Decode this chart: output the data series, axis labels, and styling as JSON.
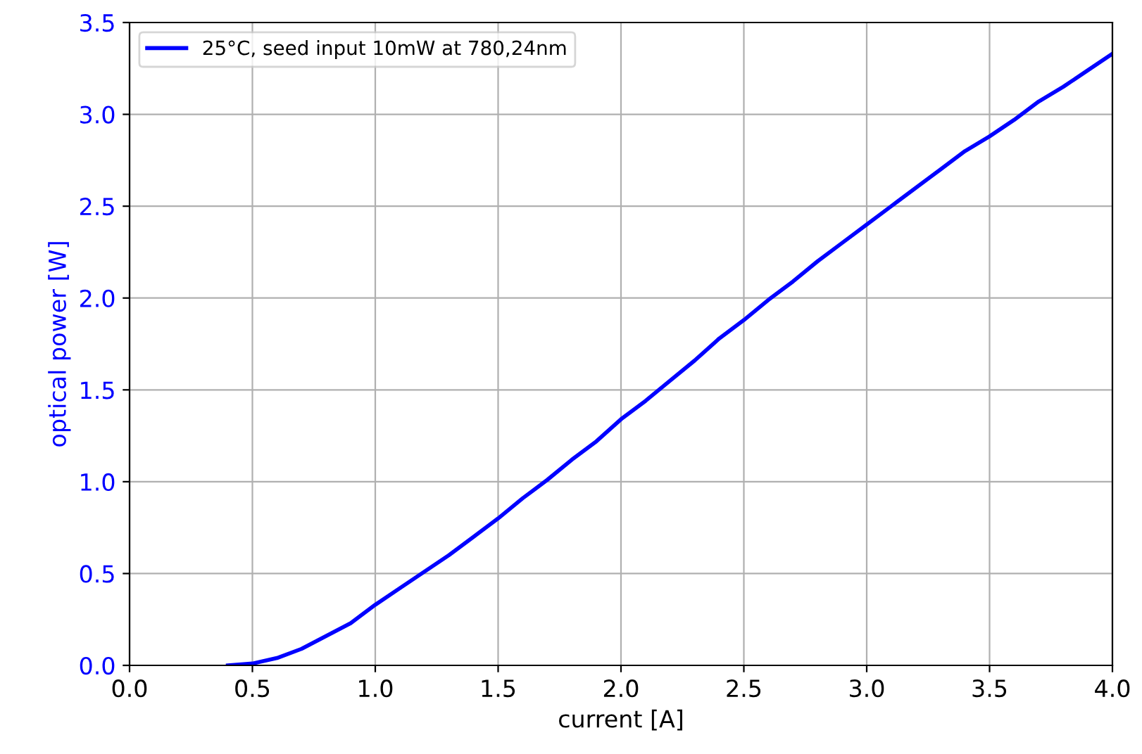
{
  "chart_data": {
    "type": "line",
    "xlabel": "current [A]",
    "ylabel": "optical power [W]",
    "x": [
      0.4,
      0.5,
      0.6,
      0.7,
      0.8,
      0.9,
      1.0,
      1.1,
      1.2,
      1.3,
      1.4,
      1.5,
      1.6,
      1.7,
      1.8,
      1.9,
      2.0,
      2.1,
      2.2,
      2.3,
      2.4,
      2.5,
      2.6,
      2.7,
      2.8,
      2.9,
      3.0,
      3.1,
      3.2,
      3.3,
      3.4,
      3.5,
      3.6,
      3.7,
      3.8,
      3.9,
      4.0
    ],
    "series": [
      {
        "name": "25°C, seed input 10mW at 780,24nm",
        "color": "#0000ff",
        "values": [
          0.0,
          0.01,
          0.04,
          0.09,
          0.16,
          0.23,
          0.33,
          0.42,
          0.51,
          0.6,
          0.7,
          0.8,
          0.91,
          1.01,
          1.12,
          1.22,
          1.34,
          1.44,
          1.55,
          1.66,
          1.78,
          1.88,
          1.99,
          2.09,
          2.2,
          2.3,
          2.4,
          2.5,
          2.6,
          2.7,
          2.8,
          2.88,
          2.97,
          3.07,
          3.15,
          3.24,
          3.33
        ]
      }
    ],
    "xlim": [
      0.0,
      4.0
    ],
    "xticks": [
      {
        "value": 0,
        "label": "0.0"
      },
      {
        "value": 0.5,
        "label": "0.5"
      },
      {
        "value": 1,
        "label": "1.0"
      },
      {
        "value": 1.5,
        "label": "1.5"
      },
      {
        "value": 2,
        "label": "2.0"
      },
      {
        "value": 2.5,
        "label": "2.5"
      },
      {
        "value": 3,
        "label": "3.0"
      },
      {
        "value": 3.5,
        "label": "3.5"
      },
      {
        "value": 4,
        "label": "4.0"
      }
    ],
    "ylim": [
      0.0,
      3.5
    ],
    "yticks": [
      {
        "value": 0,
        "label": "0.0"
      },
      {
        "value": 0.5,
        "label": "0.5"
      },
      {
        "value": 1,
        "label": "1.0"
      },
      {
        "value": 1.5,
        "label": "1.5"
      },
      {
        "value": 2,
        "label": "2.0"
      },
      {
        "value": 2.5,
        "label": "2.5"
      },
      {
        "value": 3,
        "label": "3.0"
      },
      {
        "value": 3.5,
        "label": "3.5"
      }
    ],
    "grid": true,
    "legend": "top left",
    "marker": "none",
    "line_style": "solid"
  }
}
